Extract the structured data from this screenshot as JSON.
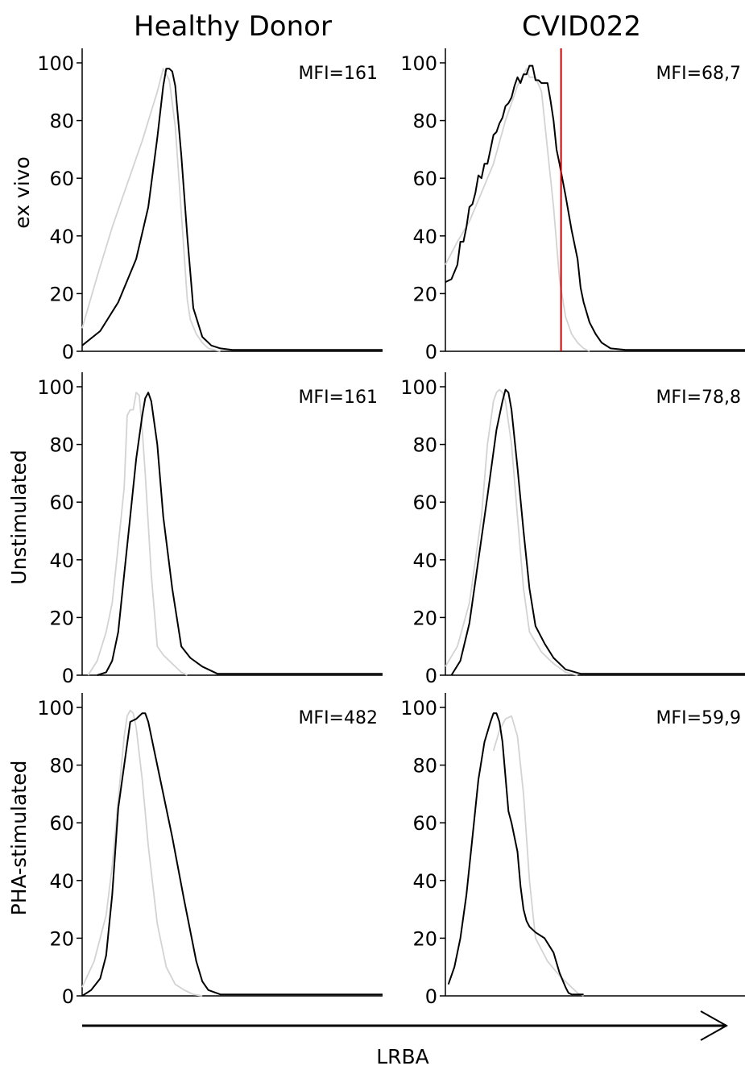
{
  "figure": {
    "columns": [
      "Healthy Donor",
      "CVID022"
    ],
    "rows": [
      "ex vivo",
      "Unstimulated",
      "PHA-stimulated"
    ],
    "x_axis_label": "LRBA"
  },
  "colors": {
    "sample": "#000000",
    "control": "#d3d3d3",
    "marker": "#cc0000"
  },
  "chart_data": [
    {
      "type": "line",
      "row": "ex vivo",
      "column": "Healthy Donor",
      "annotation": "MFI=161",
      "ylim": [
        0,
        100
      ],
      "yticks": [
        0,
        20,
        40,
        60,
        80,
        100
      ],
      "xlim": [
        0,
        100
      ],
      "series": [
        {
          "role": "control",
          "x": [
            0,
            5,
            10,
            15,
            20,
            25,
            27,
            29,
            31,
            33,
            35,
            36,
            38,
            40,
            42,
            44,
            46
          ],
          "y": [
            8,
            26,
            43,
            58,
            73,
            90,
            98,
            94,
            78,
            48,
            18,
            11,
            6,
            3,
            1,
            0.5,
            0
          ]
        },
        {
          "role": "sample",
          "x": [
            0,
            6,
            12,
            18,
            22,
            25,
            27,
            28,
            29,
            30,
            31,
            33,
            35,
            37,
            40,
            43,
            46,
            50,
            100
          ],
          "y": [
            2,
            7,
            17,
            32,
            50,
            74,
            92,
            98,
            98,
            97,
            92,
            68,
            40,
            15,
            5,
            2,
            1,
            0.5,
            0.5
          ]
        }
      ]
    },
    {
      "type": "line",
      "row": "ex vivo",
      "column": "CVID022",
      "annotation": "MFI=68,7",
      "marker_x": 38.5,
      "ylim": [
        0,
        100
      ],
      "yticks": [
        0,
        20,
        40,
        60,
        80,
        100
      ],
      "xlim": [
        0,
        100
      ],
      "series": [
        {
          "role": "control",
          "x": [
            0,
            4,
            8,
            12,
            16,
            20,
            24,
            27,
            28,
            30,
            32,
            34,
            36,
            38,
            40,
            42,
            44,
            46,
            48
          ],
          "y": [
            30,
            38,
            45,
            55,
            65,
            80,
            92,
            98,
            95,
            95,
            90,
            70,
            50,
            25,
            12,
            6,
            3,
            1,
            0
          ]
        },
        {
          "role": "sample",
          "x": [
            0,
            2,
            4,
            5,
            6,
            7,
            8,
            9,
            10,
            11,
            12,
            13,
            14,
            15,
            16,
            17,
            18,
            19,
            20,
            21,
            22,
            23,
            24,
            25,
            26,
            27,
            28,
            29,
            30,
            31,
            32,
            33,
            34,
            35,
            36,
            37,
            38,
            40,
            42,
            44,
            45,
            46,
            48,
            50,
            52,
            55,
            60,
            70,
            100
          ],
          "y": [
            24,
            25,
            30,
            38,
            38,
            43,
            50,
            51,
            55,
            61,
            60,
            65,
            65,
            70,
            75,
            76,
            79,
            81,
            85,
            86,
            88,
            92,
            95,
            93,
            96,
            96,
            99,
            99,
            94,
            94,
            93,
            93,
            93,
            87,
            80,
            70,
            65,
            54,
            42,
            32,
            22,
            17,
            10,
            6,
            3,
            1,
            0.5,
            0.5,
            0.5
          ]
        }
      ]
    },
    {
      "type": "line",
      "row": "Unstimulated",
      "column": "Healthy Donor",
      "annotation": "MFI=161",
      "ylim": [
        0,
        100
      ],
      "yticks": [
        0,
        20,
        40,
        60,
        80,
        100
      ],
      "xlim": [
        0,
        100
      ],
      "series": [
        {
          "role": "control",
          "x": [
            2,
            5,
            8,
            10,
            12,
            14,
            15,
            16,
            17,
            18,
            19,
            20,
            21,
            23,
            25,
            27,
            30,
            33,
            35
          ],
          "y": [
            0,
            5,
            15,
            25,
            45,
            65,
            90,
            92,
            92,
            98,
            97,
            85,
            70,
            35,
            10,
            7,
            4,
            1,
            0
          ]
        },
        {
          "role": "sample",
          "x": [
            5,
            8,
            10,
            12,
            14,
            16,
            18,
            20,
            21,
            22,
            23,
            25,
            27,
            30,
            33,
            36,
            40,
            45,
            100
          ],
          "y": [
            0,
            1,
            5,
            15,
            35,
            55,
            75,
            90,
            96,
            98,
            95,
            80,
            55,
            30,
            10,
            6,
            3,
            0.5,
            0.5
          ]
        }
      ]
    },
    {
      "type": "line",
      "row": "Unstimulated",
      "column": "CVID022",
      "annotation": "MFI=78,8",
      "ylim": [
        0,
        100
      ],
      "yticks": [
        0,
        20,
        40,
        60,
        80,
        100
      ],
      "xlim": [
        0,
        100
      ],
      "series": [
        {
          "role": "control",
          "x": [
            0,
            4,
            8,
            12,
            14,
            16,
            17,
            18,
            19,
            20,
            22,
            24,
            26,
            28,
            32,
            36,
            40,
            44
          ],
          "y": [
            3,
            10,
            25,
            55,
            80,
            95,
            98,
            99,
            98,
            95,
            80,
            55,
            30,
            15,
            8,
            4,
            1,
            0
          ]
        },
        {
          "role": "sample",
          "x": [
            2,
            5,
            8,
            11,
            14,
            17,
            19,
            20,
            21,
            22,
            24,
            26,
            28,
            30,
            33,
            36,
            40,
            45,
            100
          ],
          "y": [
            0,
            5,
            18,
            40,
            62,
            85,
            95,
            99,
            98,
            92,
            72,
            50,
            30,
            17,
            11,
            6,
            2,
            0.5,
            0.5
          ]
        }
      ]
    },
    {
      "type": "line",
      "row": "PHA-stimulated",
      "column": "Healthy Donor",
      "annotation": "MFI=482",
      "ylim": [
        0,
        100
      ],
      "yticks": [
        0,
        20,
        40,
        60,
        80,
        100
      ],
      "xlim": [
        0,
        100
      ],
      "series": [
        {
          "role": "control",
          "x": [
            0,
            4,
            8,
            10,
            12,
            14,
            15,
            16,
            17,
            18,
            20,
            22,
            25,
            28,
            31,
            34,
            37,
            40
          ],
          "y": [
            3,
            12,
            28,
            45,
            68,
            90,
            97,
            99,
            98,
            93,
            75,
            52,
            25,
            10,
            4,
            2,
            0.5,
            0
          ]
        },
        {
          "role": "sample",
          "x": [
            0,
            3,
            6,
            8,
            10,
            12,
            14,
            16,
            18,
            20,
            21,
            22,
            24,
            26,
            30,
            34,
            38,
            40,
            42,
            46,
            50,
            100
          ],
          "y": [
            0,
            2,
            6,
            14,
            35,
            65,
            80,
            95,
            96,
            98,
            98,
            95,
            85,
            75,
            55,
            33,
            12,
            5,
            2,
            0.5,
            0.5,
            0.5
          ]
        }
      ]
    },
    {
      "type": "line",
      "row": "PHA-stimulated",
      "column": "CVID022",
      "annotation": "MFI=59,9",
      "ylim": [
        0,
        100
      ],
      "yticks": [
        0,
        20,
        40,
        60,
        80,
        100
      ],
      "xlim": [
        0,
        100
      ],
      "series": [
        {
          "role": "control",
          "x": [
            16,
            18,
            20,
            22,
            24,
            26,
            28,
            30,
            34,
            38,
            41,
            44,
            46
          ],
          "y": [
            85,
            92,
            96,
            97,
            90,
            70,
            40,
            20,
            12,
            7,
            4,
            1,
            0
          ]
        },
        {
          "role": "sample",
          "x": [
            1,
            3,
            5,
            7,
            9,
            11,
            13,
            15,
            16,
            17,
            18,
            19,
            21,
            22,
            24,
            25,
            26,
            27,
            28,
            30,
            33,
            36,
            38,
            40,
            41,
            42,
            44,
            46
          ],
          "y": [
            4,
            10,
            20,
            35,
            55,
            75,
            88,
            95,
            98,
            98,
            95,
            88,
            64,
            60,
            50,
            38,
            30,
            26,
            24,
            22,
            20,
            15,
            8,
            3,
            1,
            0.5,
            0.5,
            0.5
          ]
        }
      ]
    }
  ]
}
